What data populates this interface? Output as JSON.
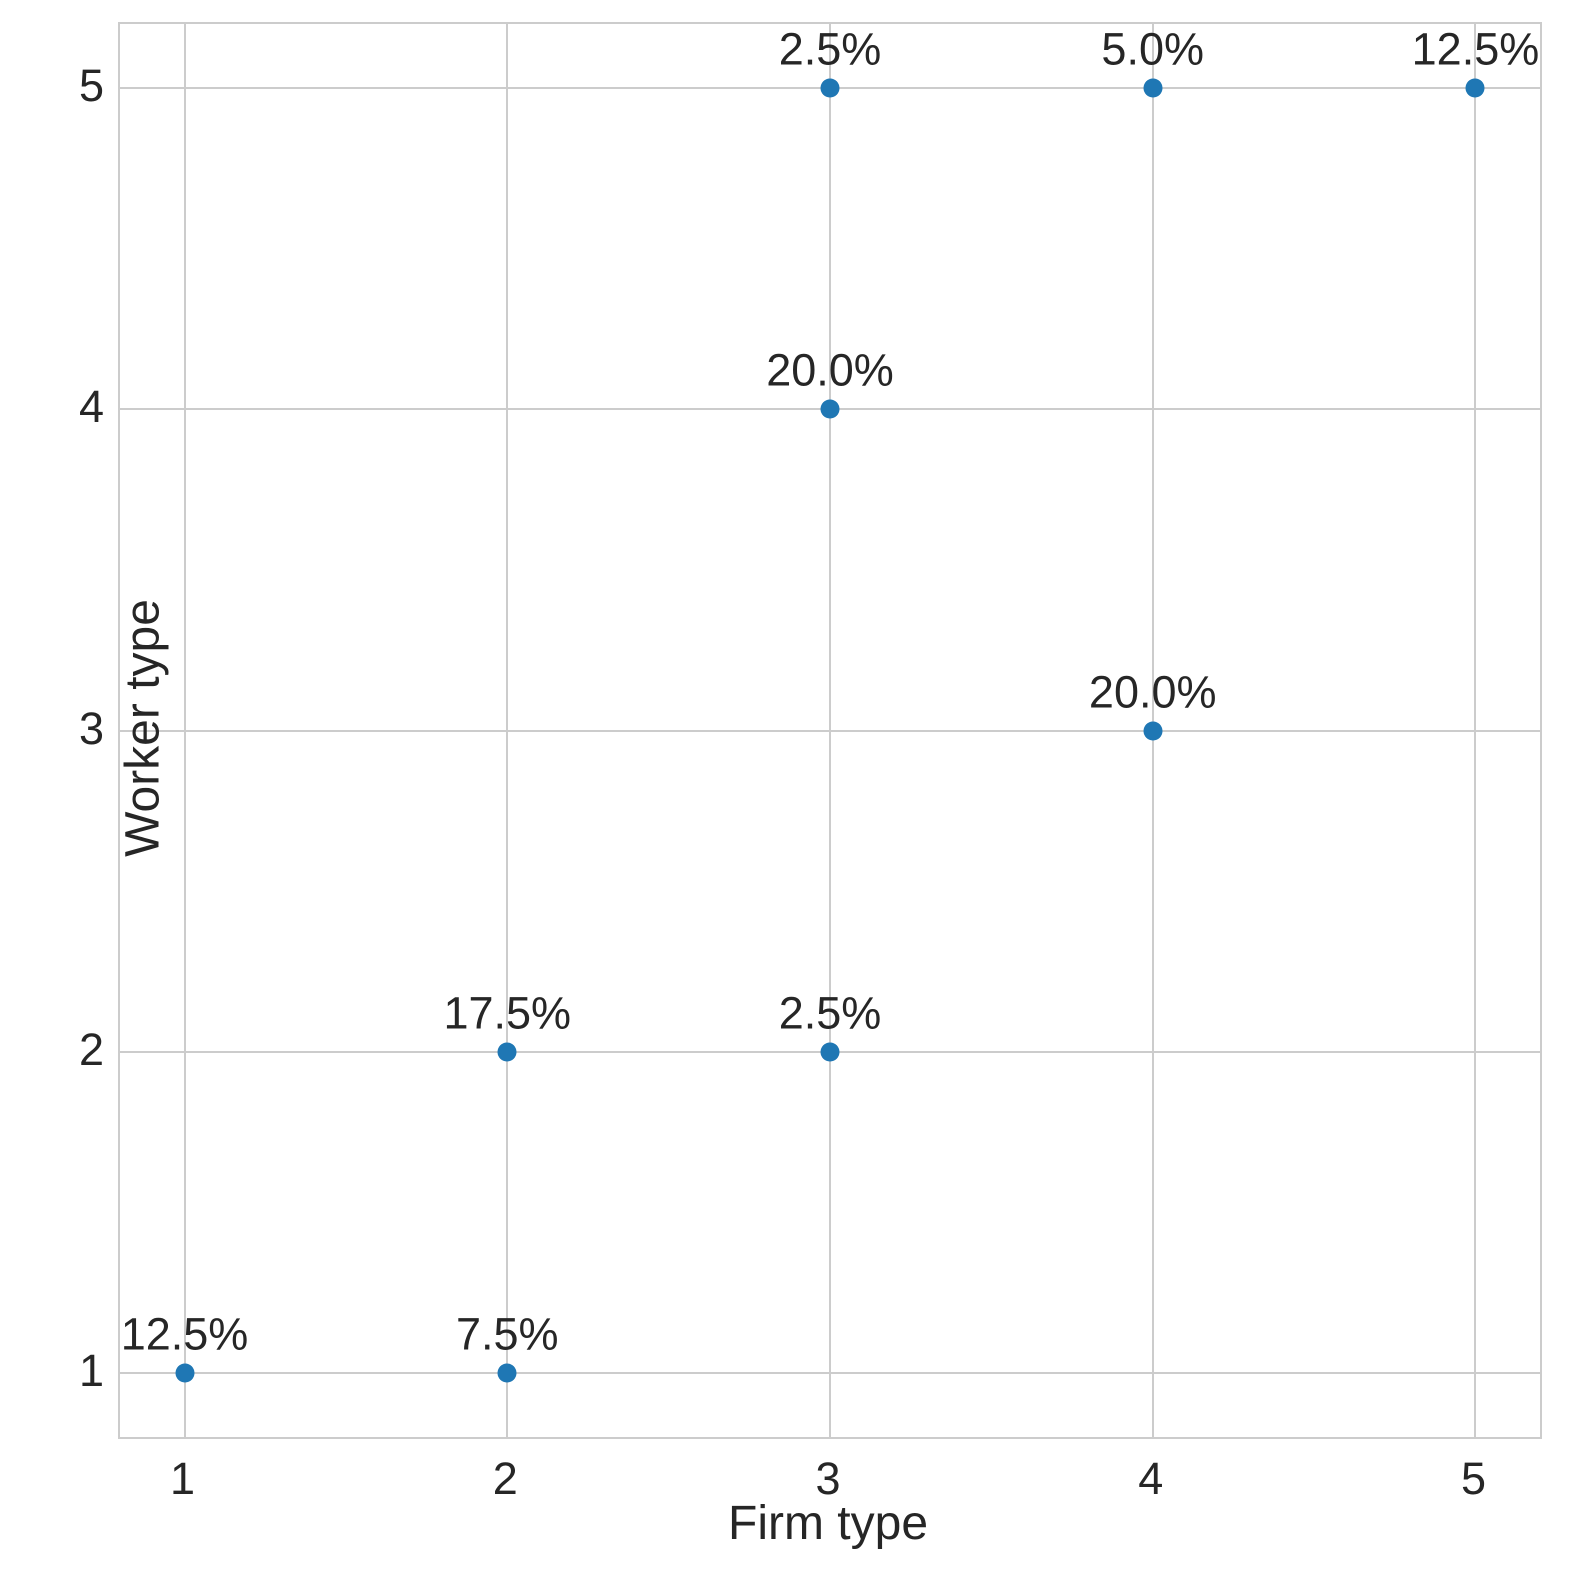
{
  "chart_data": {
    "type": "scatter",
    "title": "",
    "xlabel": "Firm type",
    "ylabel": "Worker type",
    "xticks": [
      1,
      2,
      3,
      4,
      5
    ],
    "yticks": [
      1,
      2,
      3,
      4,
      5
    ],
    "xlim": [
      0.8,
      5.2
    ],
    "ylim": [
      0.8,
      5.2
    ],
    "grid": true,
    "legend": "none",
    "points": [
      {
        "x": 1,
        "y": 1,
        "label": "12.5%"
      },
      {
        "x": 2,
        "y": 1,
        "label": "7.5%"
      },
      {
        "x": 2,
        "y": 2,
        "label": "17.5%"
      },
      {
        "x": 3,
        "y": 2,
        "label": "2.5%"
      },
      {
        "x": 4,
        "y": 3,
        "label": "20.0%"
      },
      {
        "x": 3,
        "y": 4,
        "label": "20.0%"
      },
      {
        "x": 3,
        "y": 5,
        "label": "2.5%"
      },
      {
        "x": 4,
        "y": 5,
        "label": "5.0%"
      },
      {
        "x": 5,
        "y": 5,
        "label": "12.5%"
      }
    ],
    "colors": {
      "marker": "#1f77b4",
      "grid": "#cccccc",
      "spine": "#cccccc",
      "text": "#262626",
      "background": "#ffffff"
    }
  }
}
